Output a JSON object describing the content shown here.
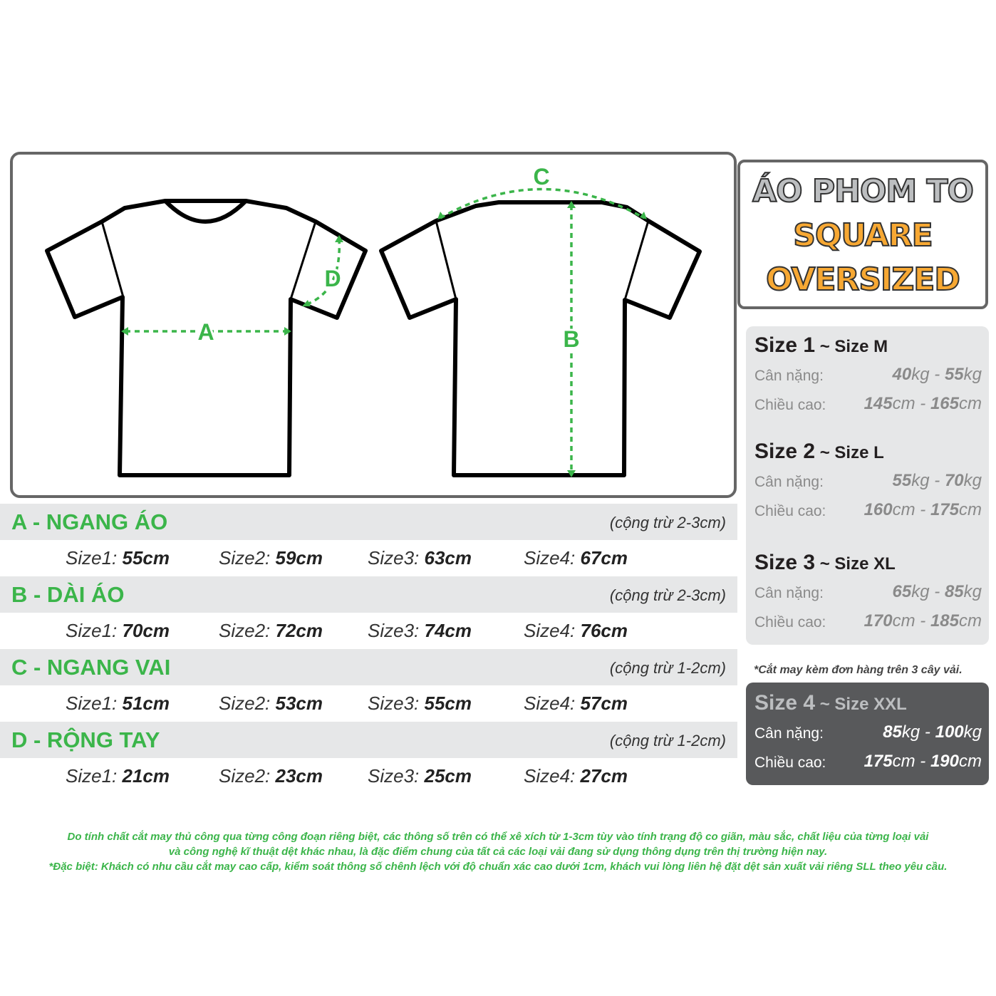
{
  "colors": {
    "accent": "#3bb54a",
    "orange": "#f7a833",
    "frame": "#666666",
    "dark": "#58595b"
  },
  "diagram": {
    "labels": [
      "A",
      "B",
      "C",
      "D"
    ]
  },
  "title": {
    "line1": "ÁO PHOM TO",
    "line2": "SQUARE",
    "line3": "OVERSIZED"
  },
  "measurements": [
    {
      "label": "A - NGANG ÁO",
      "tolerance": "(cộng trừ 2-3cm)",
      "values": [
        {
          "size": "Size1:",
          "value": "55cm"
        },
        {
          "size": "Size2:",
          "value": "59cm"
        },
        {
          "size": "Size3:",
          "value": "63cm"
        },
        {
          "size": "Size4:",
          "value": "67cm"
        }
      ]
    },
    {
      "label": "B - DÀI ÁO",
      "tolerance": "(cộng trừ 2-3cm)",
      "values": [
        {
          "size": "Size1:",
          "value": "70cm"
        },
        {
          "size": "Size2:",
          "value": "72cm"
        },
        {
          "size": "Size3:",
          "value": "74cm"
        },
        {
          "size": "Size4:",
          "value": "76cm"
        }
      ]
    },
    {
      "label": "C - NGANG VAI",
      "tolerance": "(cộng trừ 1-2cm)",
      "values": [
        {
          "size": "Size1:",
          "value": "51cm"
        },
        {
          "size": "Size2:",
          "value": "53cm"
        },
        {
          "size": "Size3:",
          "value": "55cm"
        },
        {
          "size": "Size4:",
          "value": "57cm"
        }
      ]
    },
    {
      "label": "D - RỘNG TAY",
      "tolerance": "(cộng trừ 1-2cm)",
      "values": [
        {
          "size": "Size1:",
          "value": "21cm"
        },
        {
          "size": "Size2:",
          "value": "23cm"
        },
        {
          "size": "Size3:",
          "value": "25cm"
        },
        {
          "size": "Size4:",
          "value": "27cm"
        }
      ]
    }
  ],
  "sizes": [
    {
      "name": "Size",
      "num": "1",
      "alias": "~ Size M",
      "weight_label": "Cân nặng:",
      "w1": "40",
      "w2": "55",
      "wu": "kg",
      "height_label": "Chiều cao:",
      "h1": "145",
      "h2": "165",
      "hu": "cm"
    },
    {
      "name": "Size",
      "num": "2",
      "alias": "~ Size L",
      "weight_label": "Cân nặng:",
      "w1": "55",
      "w2": "70",
      "wu": "kg",
      "height_label": "Chiều cao:",
      "h1": "160",
      "h2": "175",
      "hu": "cm"
    },
    {
      "name": "Size",
      "num": "3",
      "alias": "~ Size XL",
      "weight_label": "Cân nặng:",
      "w1": "65",
      "w2": "85",
      "wu": "kg",
      "height_label": "Chiều cao:",
      "h1": "170",
      "h2": "185",
      "hu": "cm"
    },
    {
      "name": "Size",
      "num": "4",
      "alias": "~ Size XXL",
      "weight_label": "Cân nặng:",
      "w1": "85",
      "w2": "100",
      "wu": "kg",
      "height_label": "Chiều cao:",
      "h1": "175",
      "h2": "190",
      "hu": "cm"
    }
  ],
  "note": "*Cắt may kèm đơn hàng trên 3 cây vải.",
  "footer": [
    "Do tính chất cắt may thủ công qua từng công đoạn riêng biệt, các thông số trên có thể xê xích từ 1-3cm tùy vào tính trạng độ co giãn, màu sắc, chất liệu của từng loại vải",
    "và công nghệ kĩ thuật dệt khác nhau, là đặc điểm chung của tất cả các loại vải đang sử dụng thông dụng trên thị trường hiện nay.",
    "*Đặc biệt: Khách có nhu cầu cắt may cao cấp, kiểm soát thông số chênh lệch với độ chuẩn xác cao dưới 1cm, khách vui lòng liên hệ đặt dệt sản xuất vải riêng SLL theo yêu cầu."
  ]
}
